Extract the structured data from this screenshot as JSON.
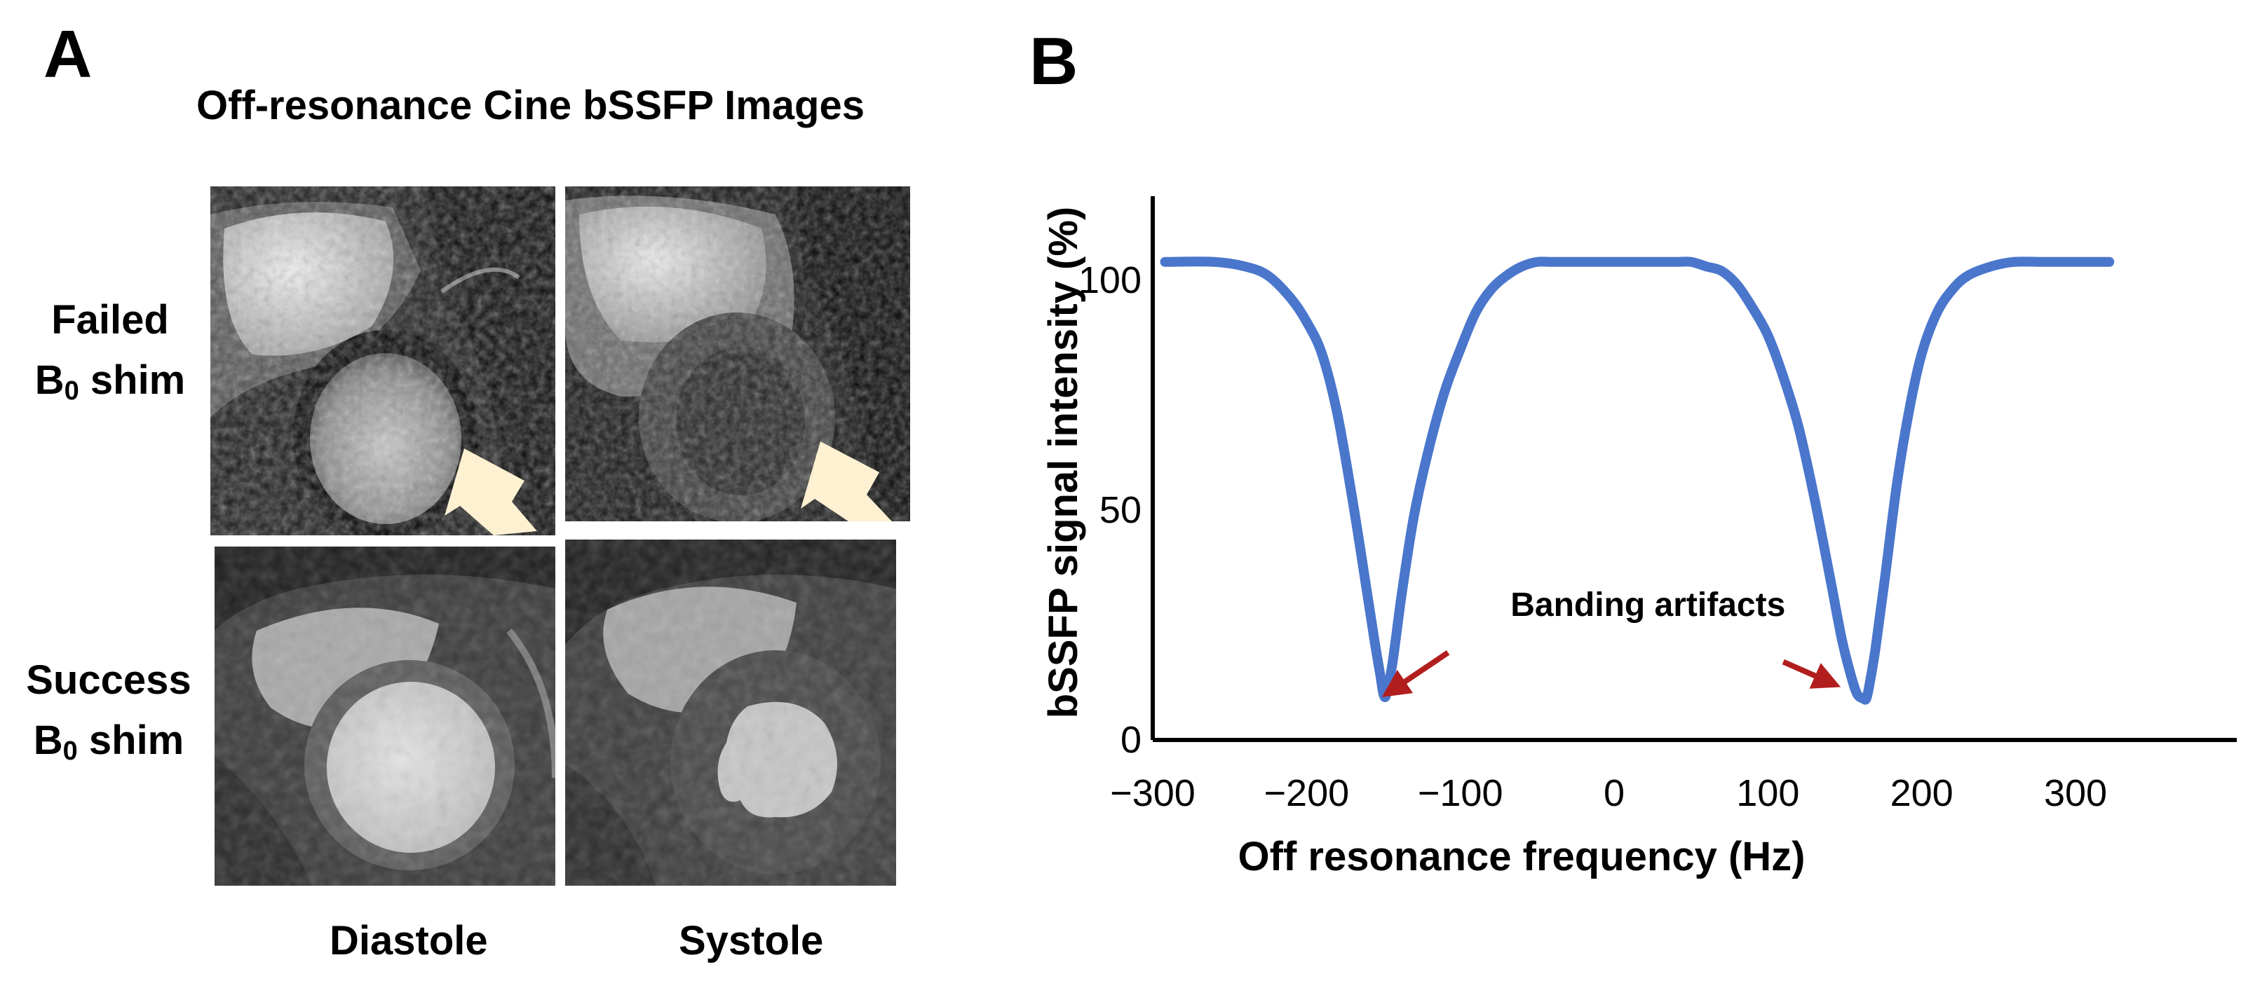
{
  "figure": {
    "panel_a": {
      "letter": "A",
      "title": "Off-resonance Cine bSSFP Images",
      "rows": [
        {
          "line1": "Failed",
          "line2_main": "B",
          "line2_sub": "0",
          "line2_rest": " shim"
        },
        {
          "line1": "Success",
          "line2_main": "B",
          "line2_sub": "0",
          "line2_rest": " shim"
        }
      ],
      "columns": [
        "Diastole",
        "Systole"
      ],
      "images": [
        {
          "row": "failed",
          "phase": "diastole",
          "arrow": true
        },
        {
          "row": "failed",
          "phase": "systole",
          "arrow": true
        },
        {
          "row": "success",
          "phase": "diastole",
          "arrow": false
        },
        {
          "row": "success",
          "phase": "systole",
          "arrow": false
        }
      ],
      "arrow_color": "#fdf1d2"
    },
    "panel_b": {
      "letter": "B"
    }
  },
  "chart_data": {
    "type": "line",
    "xlabel": "Off resonance frequency (Hz)",
    "ylabel": "bSSFP signal intensity (%)",
    "xlim": [
      -300,
      330
    ],
    "ylim": [
      0,
      120
    ],
    "xticks": [
      -300,
      -200,
      -100,
      0,
      100,
      200,
      300
    ],
    "xtick_labels": [
      "−300",
      "−200",
      "−100",
      "0",
      "100",
      "200",
      "300"
    ],
    "yticks": [
      0,
      50,
      100
    ],
    "ytick_labels": [
      "0",
      "50",
      "100"
    ],
    "grid": false,
    "series": [
      {
        "color": "#4a76cc",
        "x": [
          -292,
          -260,
          -240,
          -225,
          -210,
          -200,
          -190,
          -180,
          -170,
          -162,
          -156,
          -152,
          -150,
          -148,
          -144,
          -138,
          -130,
          -120,
          -110,
          -100,
          -90,
          -80,
          -70,
          -60,
          -50,
          -40,
          -20,
          0,
          20,
          40,
          50,
          60,
          70,
          80,
          90,
          100,
          110,
          120,
          130,
          140,
          148,
          154,
          158,
          162,
          164,
          166,
          170,
          176,
          184,
          192,
          200,
          210,
          220,
          230,
          245,
          260,
          280,
          305,
          322
        ],
        "y": [
          104,
          104,
          103,
          101,
          96,
          91,
          84,
          71,
          52,
          35,
          22,
          14,
          10,
          10,
          17,
          32,
          49,
          64,
          76,
          85,
          93,
          98,
          101,
          103,
          104,
          104,
          104,
          104,
          104,
          104,
          104,
          103,
          102,
          99,
          94,
          88,
          79,
          68,
          53,
          36,
          22,
          14,
          10,
          9,
          9,
          12,
          20,
          35,
          56,
          72,
          84,
          93,
          98,
          101,
          103,
          104,
          104,
          104,
          104
        ]
      }
    ],
    "annotations": [
      {
        "text": "Banding artifacts",
        "x": 22,
        "y": 27
      },
      {
        "type": "arrow",
        "color": "#b21e1e",
        "from": [
          -108,
          19
        ],
        "to": [
          -148,
          10
        ]
      },
      {
        "type": "arrow",
        "color": "#b21e1e",
        "from": [
          110,
          17
        ],
        "to": [
          144,
          12
        ]
      }
    ]
  }
}
